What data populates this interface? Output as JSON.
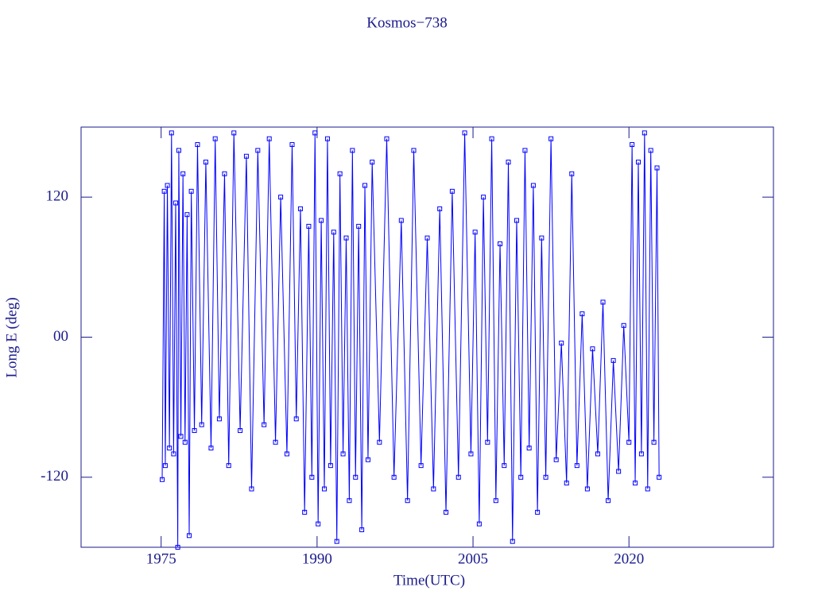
{
  "chart_data": {
    "type": "line",
    "title": "Kosmos−738",
    "x_label": "Time(UTC)",
    "y_label": "Long E (deg)",
    "xlim": [
      1967.3,
      2033.9
    ],
    "xticks": [
      1975,
      1990,
      2005,
      2020
    ],
    "ylim": [
      -180,
      180
    ],
    "yticks": [
      120,
      {
        "value": 0,
        "label": "00"
      },
      -120
    ],
    "x": [
      1975.1,
      1975.3,
      1975.4,
      1975.6,
      1975.8,
      1976.0,
      1976.2,
      1976.4,
      1976.6,
      1976.7,
      1976.9,
      1977.1,
      1977.3,
      1977.5,
      1977.7,
      1977.9,
      1978.2,
      1978.5,
      1978.9,
      1979.3,
      1979.8,
      1980.2,
      1980.6,
      1981.1,
      1981.5,
      1982.0,
      1982.6,
      1983.2,
      1983.7,
      1984.3,
      1984.9,
      1985.4,
      1986.0,
      1986.5,
      1987.1,
      1987.6,
      1988.0,
      1988.4,
      1988.8,
      1989.2,
      1989.5,
      1989.8,
      1990.1,
      1990.4,
      1990.7,
      1991.0,
      1991.3,
      1991.6,
      1991.9,
      1992.2,
      1992.5,
      1992.8,
      1993.1,
      1993.4,
      1993.7,
      1994.0,
      1994.3,
      1994.6,
      1994.9,
      1995.3,
      1996.0,
      1996.7,
      1997.4,
      1998.1,
      1998.7,
      1999.3,
      2000.0,
      2000.6,
      2001.2,
      2001.8,
      2002.4,
      2003.0,
      2003.6,
      2004.2,
      2004.8,
      2005.2,
      2005.6,
      2006.0,
      2006.4,
      2006.8,
      2007.2,
      2007.6,
      2008.0,
      2008.4,
      2008.8,
      2009.2,
      2009.6,
      2010.0,
      2010.4,
      2010.8,
      2011.2,
      2011.6,
      2012.0,
      2012.5,
      2013.0,
      2013.5,
      2014.0,
      2014.5,
      2015.0,
      2015.5,
      2016.0,
      2016.5,
      2017.0,
      2017.5,
      2018.0,
      2018.5,
      2019.0,
      2019.5,
      2020.0,
      2020.3,
      2020.6,
      2020.9,
      2021.2,
      2021.5,
      2021.8,
      2022.1,
      2022.4,
      2022.7,
      2022.9
    ],
    "series": [
      {
        "name": "Kosmos−738",
        "color": "#0000ff",
        "values": [
          -122,
          125,
          -110,
          130,
          -95,
          175,
          -100,
          115,
          -180,
          160,
          -85,
          140,
          -90,
          105,
          -170,
          125,
          -80,
          165,
          -75,
          150,
          -95,
          170,
          -70,
          140,
          -110,
          175,
          -80,
          155,
          -130,
          160,
          -75,
          170,
          -90,
          120,
          -100,
          165,
          -70,
          110,
          -150,
          95,
          -120,
          175,
          -160,
          100,
          -130,
          170,
          -110,
          90,
          -175,
          140,
          -100,
          85,
          -140,
          160,
          -120,
          95,
          -165,
          130,
          -105,
          150,
          -90,
          170,
          -120,
          100,
          -140,
          160,
          -110,
          85,
          -130,
          110,
          -150,
          125,
          -120,
          175,
          -100,
          90,
          -160,
          120,
          -90,
          170,
          -140,
          80,
          -110,
          150,
          -175,
          100,
          -120,
          160,
          -95,
          130,
          -150,
          85,
          -120,
          170,
          -105,
          -5,
          -125,
          140,
          -110,
          20,
          -130,
          -10,
          -100,
          30,
          -140,
          -20,
          -115,
          10,
          -90,
          165,
          -125,
          150,
          -100,
          175,
          -130,
          160,
          -90,
          145,
          -120
        ]
      }
    ],
    "axis_color": "#1a1a8c"
  }
}
